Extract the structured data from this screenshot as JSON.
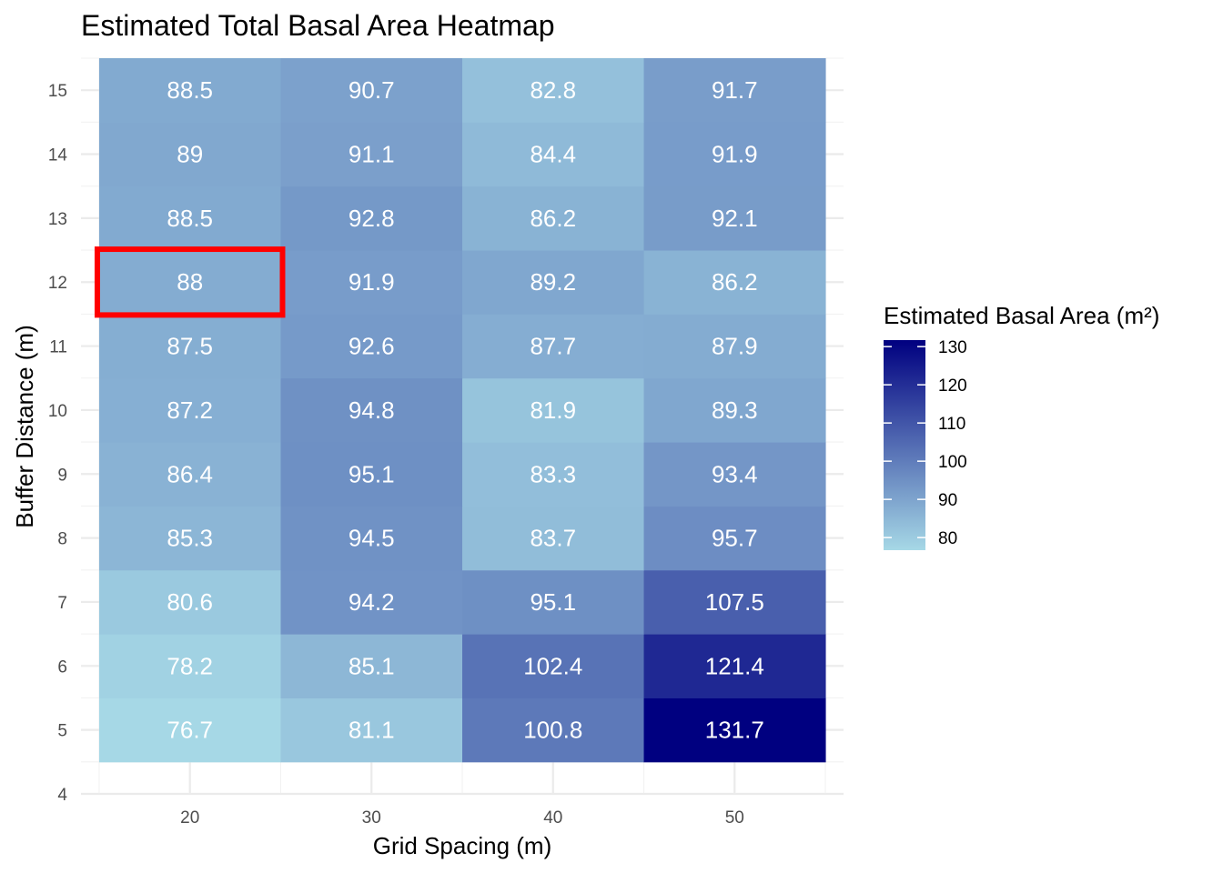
{
  "chart_data": {
    "type": "heatmap",
    "title": "Estimated Total Basal Area Heatmap",
    "xlabel": "Grid Spacing (m)",
    "ylabel": "Buffer Distance (m)",
    "x": [
      20,
      30,
      40,
      50
    ],
    "y": [
      5,
      6,
      7,
      8,
      9,
      10,
      11,
      12,
      13,
      14,
      15
    ],
    "x_ticks": [
      "20",
      "30",
      "40",
      "50"
    ],
    "y_ticks": [
      "4",
      "5",
      "6",
      "7",
      "8",
      "9",
      "10",
      "11",
      "12",
      "13",
      "14",
      "15"
    ],
    "xlim": [
      14,
      56
    ],
    "ylim": [
      4,
      15.5
    ],
    "grid": true,
    "values": [
      [
        76.7,
        81.1,
        100.8,
        131.7
      ],
      [
        78.2,
        85.1,
        102.4,
        121.4
      ],
      [
        80.6,
        94.2,
        95.1,
        107.5
      ],
      [
        85.3,
        94.5,
        83.7,
        95.7
      ],
      [
        86.4,
        95.1,
        83.3,
        93.4
      ],
      [
        87.2,
        94.8,
        81.9,
        89.3
      ],
      [
        87.5,
        92.6,
        87.7,
        87.9
      ],
      [
        88,
        91.9,
        89.2,
        86.2
      ],
      [
        88.5,
        92.8,
        86.2,
        92.1
      ],
      [
        89,
        91.1,
        84.4,
        91.9
      ],
      [
        88.5,
        90.7,
        82.8,
        91.7
      ]
    ],
    "labels": [
      [
        "76.7",
        "81.1",
        "100.8",
        "131.7"
      ],
      [
        "78.2",
        "85.1",
        "102.4",
        "121.4"
      ],
      [
        "80.6",
        "94.2",
        "95.1",
        "107.5"
      ],
      [
        "85.3",
        "94.5",
        "83.7",
        "95.7"
      ],
      [
        "86.4",
        "95.1",
        "83.3",
        "93.4"
      ],
      [
        "87.2",
        "94.8",
        "81.9",
        "89.3"
      ],
      [
        "87.5",
        "92.6",
        "87.7",
        "87.9"
      ],
      [
        "88",
        "91.9",
        "89.2",
        "86.2"
      ],
      [
        "88.5",
        "92.8",
        "86.2",
        "92.1"
      ],
      [
        "89",
        "91.1",
        "84.4",
        "91.9"
      ],
      [
        "88.5",
        "90.7",
        "82.8",
        "91.7"
      ]
    ],
    "highlight": {
      "x": 20,
      "y": 12,
      "color": "#ff0000"
    },
    "color_scale": {
      "low": "#a6d8e6",
      "high": "#000080",
      "min": 76.7,
      "max": 131.7
    },
    "legend": {
      "title": "Estimated Basal Area (m²)",
      "ticks": [
        80,
        90,
        100,
        110,
        120,
        130
      ],
      "tick_labels": [
        "80",
        "90",
        "100",
        "110",
        "120",
        "130"
      ],
      "placement": "right"
    }
  }
}
